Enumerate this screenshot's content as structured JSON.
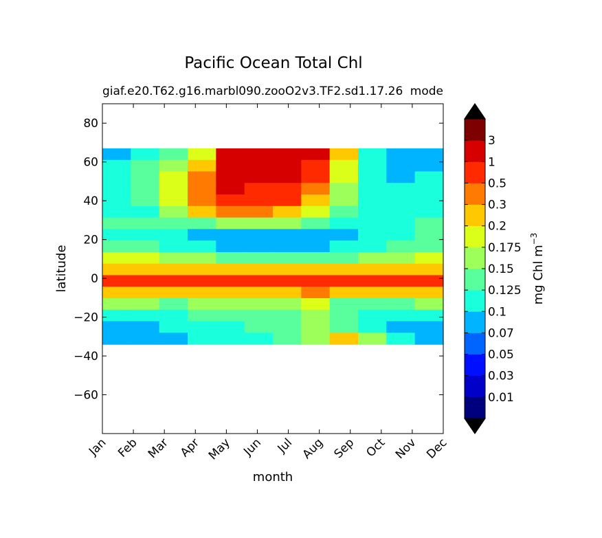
{
  "chart_data": {
    "type": "heatmap",
    "title": "Pacific Ocean Total Chl",
    "subtitle_left": "giaf.e20.T62.g16.marbl090.zooO2v3.TF2.sd1.17.26",
    "subtitle_right": "mode",
    "xlabel": "month",
    "ylabel": "latitude",
    "x_tick_labels": [
      "Jan",
      "Feb",
      "Mar",
      "Apr",
      "May",
      "Jun",
      "Jul",
      "Aug",
      "Sep",
      "Oct",
      "Nov",
      "Dec"
    ],
    "y_ticks": [
      -60,
      -40,
      -20,
      0,
      20,
      40,
      60,
      80
    ],
    "y_tick_labels": [
      "−60",
      "−40",
      "−20",
      "0",
      "20",
      "40",
      "60",
      "80"
    ],
    "xlim": [
      0,
      11
    ],
    "ylim": [
      -80,
      90
    ],
    "data_lat_range": [
      -34,
      67
    ],
    "colorbar": {
      "label": "mg Chl m",
      "label_superscript": "−3",
      "levels": [
        "0.01",
        "0.03",
        "0.05",
        "0.07",
        "0.1",
        "0.125",
        "0.15",
        "0.175",
        "0.2",
        "0.3",
        "0.5",
        "1",
        "3"
      ],
      "colors": [
        "#00007f",
        "#0000c8",
        "#0010ff",
        "#0064ff",
        "#00b4ff",
        "#1affdc",
        "#5aff9d",
        "#9dff5a",
        "#dcff1a",
        "#ffc800",
        "#ff7a00",
        "#ff2a00",
        "#d60000",
        "#7f0000"
      ],
      "extend": "both"
    },
    "months": [
      0,
      1,
      2,
      3,
      4,
      5,
      6,
      7,
      8,
      9,
      10,
      11
    ],
    "lat_rows": [
      66,
      60,
      54,
      48,
      42,
      36,
      30,
      24,
      18,
      12,
      6,
      0,
      -6,
      -12,
      -18,
      -24,
      -30
    ],
    "level_index_rows": [
      [
        4,
        5,
        6,
        8,
        12,
        12,
        12,
        12,
        9,
        5,
        4,
        4
      ],
      [
        5,
        6,
        7,
        9,
        12,
        12,
        12,
        11,
        8,
        5,
        4,
        4
      ],
      [
        5,
        6,
        8,
        10,
        12,
        12,
        12,
        11,
        8,
        5,
        4,
        5
      ],
      [
        5,
        6,
        8,
        10,
        12,
        11,
        11,
        10,
        7,
        5,
        5,
        5
      ],
      [
        5,
        6,
        8,
        10,
        11,
        11,
        11,
        9,
        7,
        5,
        5,
        5
      ],
      [
        5,
        5,
        7,
        9,
        10,
        10,
        9,
        8,
        6,
        5,
        5,
        5
      ],
      [
        6,
        6,
        6,
        6,
        7,
        7,
        7,
        6,
        5,
        5,
        5,
        6
      ],
      [
        5,
        5,
        5,
        4,
        4,
        4,
        4,
        4,
        4,
        5,
        5,
        6
      ],
      [
        6,
        6,
        5,
        5,
        4,
        4,
        4,
        4,
        5,
        5,
        6,
        6
      ],
      [
        8,
        8,
        7,
        7,
        6,
        6,
        6,
        6,
        6,
        7,
        7,
        8
      ],
      [
        9,
        9,
        9,
        9,
        9,
        9,
        9,
        9,
        9,
        9,
        9,
        9
      ],
      [
        11,
        11,
        11,
        11,
        11,
        11,
        11,
        11,
        11,
        11,
        11,
        11
      ],
      [
        9,
        9,
        9,
        9,
        9,
        9,
        9,
        10,
        9,
        9,
        9,
        9
      ],
      [
        7,
        7,
        6,
        7,
        7,
        7,
        7,
        8,
        6,
        6,
        6,
        7
      ],
      [
        5,
        5,
        5,
        6,
        6,
        6,
        6,
        7,
        6,
        5,
        5,
        5
      ],
      [
        4,
        4,
        5,
        5,
        5,
        6,
        6,
        7,
        6,
        5,
        4,
        4
      ],
      [
        4,
        4,
        4,
        5,
        5,
        5,
        6,
        7,
        9,
        7,
        5,
        4
      ]
    ]
  }
}
